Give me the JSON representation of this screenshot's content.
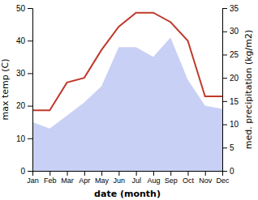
{
  "chart_data": {
    "type": "combo",
    "categories": [
      "Jan",
      "Feb",
      "Mar",
      "Apr",
      "May",
      "Jun",
      "Jul",
      "Aug",
      "Sep",
      "Oct",
      "Nov",
      "Dec"
    ],
    "series": [
      {
        "type": "area",
        "color": "#c8d0f5",
        "values": [
          15,
          13,
          17,
          21,
          26,
          38,
          38,
          35,
          41,
          28,
          20,
          19
        ]
      },
      {
        "type": "line",
        "color": "#c0392b",
        "axis": "y2",
        "values": [
          13,
          13,
          19,
          20,
          26,
          31,
          34,
          34,
          32,
          28,
          16,
          16
        ]
      }
    ],
    "x_label": "date (month)",
    "y_label": "max temp (C)",
    "y2_label": "med. precipitation (kg/m2)",
    "ylim": [
      0,
      50
    ],
    "yticks": [
      0,
      10,
      20,
      30,
      40,
      50
    ],
    "y2lim": [
      0,
      35
    ],
    "y2ticks": [
      0,
      5,
      10,
      15,
      20,
      25,
      30,
      35
    ]
  }
}
